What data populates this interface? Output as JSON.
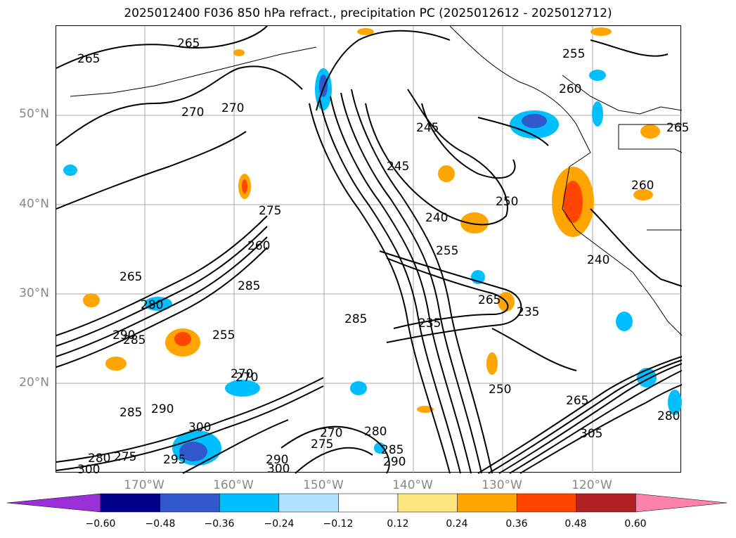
{
  "title": "2025012400 F036 850 hPa refract., precipitation PC (2025012612 - 2025012712)",
  "lat_labels": [
    "50°N",
    "40°N",
    "30°N",
    "20°N"
  ],
  "lon_labels": [
    "170°W",
    "160°W",
    "150°W",
    "140°W",
    "130°W",
    "120°W"
  ],
  "contour_labels": [
    "265",
    "265",
    "270",
    "270",
    "275",
    "260",
    "265",
    "285",
    "280",
    "290",
    "285",
    "255",
    "270",
    "285",
    "245",
    "245",
    "240",
    "250",
    "255",
    "265",
    "235",
    "235",
    "250",
    "240",
    "260",
    "265",
    "255",
    "260",
    "270",
    "290",
    "300",
    "295",
    "285",
    "275",
    "280",
    "300",
    "290",
    "275",
    "270",
    "280",
    "285",
    "290",
    "300",
    "305",
    "280",
    "265"
  ],
  "colorbar": {
    "ticks": [
      "−0.60",
      "−0.48",
      "−0.36",
      "−0.24",
      "−0.12",
      "0.12",
      "0.24",
      "0.36",
      "0.48",
      "0.60"
    ],
    "colors": [
      "#9b30d9",
      "#00008b",
      "#3158cc",
      "#00bfff",
      "#b0e2ff",
      "#ffffff",
      "#ffe680",
      "#ffa500",
      "#ff4500",
      "#b22222",
      "#ff82ab"
    ]
  }
}
